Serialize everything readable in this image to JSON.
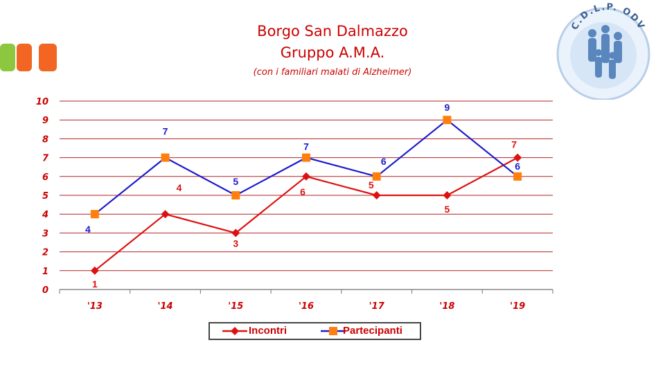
{
  "slide": {
    "title_line1": "Borgo San Dalmazzo",
    "title_line2": "Gruppo A.M.A.",
    "subtitle": "(con i familiari malati di Alzheimer)",
    "logo_text": "C.D.L.P. ODV"
  },
  "colors": {
    "title": "#cc0000",
    "incontri": "#dd1111",
    "partecipanti_line": "#1a1acc",
    "partecipanti_marker": "#ff7f0e",
    "deco_green": "#8dc63f",
    "deco_orange": "#f26522"
  },
  "chart_data": {
    "type": "line",
    "categories": [
      "'13",
      "'14",
      "'15",
      "'16",
      "'17",
      "'18",
      "'19"
    ],
    "ylim": [
      0,
      10
    ],
    "yticks": [
      "0",
      "1",
      "2",
      "3",
      "4",
      "5",
      "6",
      "7",
      "8",
      "9",
      "10"
    ],
    "grid": true,
    "legend_position": "bottom",
    "series": [
      {
        "name": "Incontri",
        "values": [
          1,
          4,
          3,
          6,
          5,
          5,
          7
        ],
        "marker": "diamond"
      },
      {
        "name": "Partecipanti",
        "values": [
          4,
          7,
          5,
          7,
          6,
          9,
          6
        ],
        "marker": "square"
      }
    ]
  }
}
